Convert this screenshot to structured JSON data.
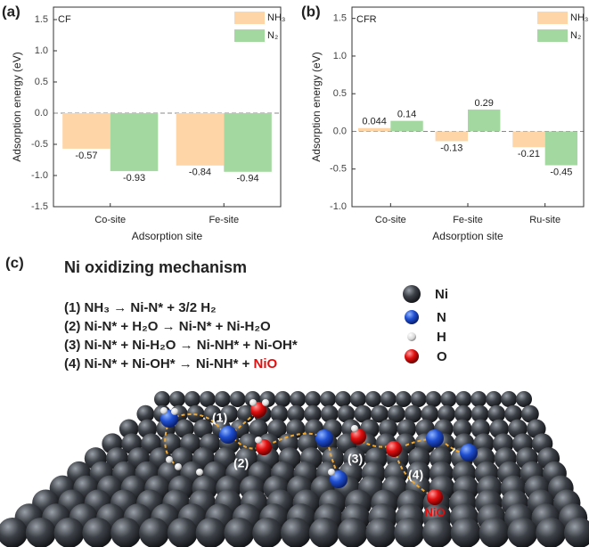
{
  "chart_data": [
    {
      "type": "bar",
      "panel_label": "(a)",
      "annotation": "CF",
      "ylabel": "Adsorption energy (eV)",
      "xlabel": "Adsorption site",
      "categories": [
        "Co-site",
        "Fe-site"
      ],
      "series": [
        {
          "name": "NH₃",
          "color": "#fdd5a6",
          "values": [
            -0.57,
            -0.84
          ]
        },
        {
          "name": "N₂",
          "color": "#a3d9a0",
          "values": [
            -0.93,
            -0.94
          ]
        }
      ],
      "ylim": [
        -1.5,
        1.7
      ],
      "yticks": [
        -1.5,
        {
          "value": -1.0,
          "label": "-1.0"
        },
        -0.5,
        {
          "value": 0,
          "label": "0.0"
        },
        0.5,
        {
          "value": 1.0,
          "label": "1.0"
        },
        1.5
      ],
      "legend": "upper right"
    },
    {
      "type": "bar",
      "panel_label": "(b)",
      "annotation": "CFR",
      "ylabel": "Adsorption energy (eV)",
      "xlabel": "Adsorption site",
      "categories": [
        "Co-site",
        "Fe-site",
        "Ru-site"
      ],
      "series": [
        {
          "name": "NH₃",
          "color": "#fdd5a6",
          "values": [
            0.044,
            -0.13,
            -0.21
          ]
        },
        {
          "name": "N₂",
          "color": "#a3d9a0",
          "values": [
            0.14,
            0.29,
            -0.45
          ]
        }
      ],
      "ylim": [
        -1.0,
        1.65
      ],
      "yticks": [
        {
          "value": -1.0,
          "label": "-1.0"
        },
        -0.5,
        {
          "value": 0,
          "label": "0.0"
        },
        0.5,
        {
          "value": 1.0,
          "label": "1.0"
        },
        1.5
      ],
      "legend": "upper right"
    }
  ],
  "mechanism": {
    "panel_label": "(c)",
    "title": "Ni oxidizing mechanism",
    "equations": [
      "(1) NH₃ → Ni-N* + 3/2 H₂",
      "(2) Ni-N* + H₂O → Ni-N* + Ni-H₂O",
      "(3) Ni-N* + Ni-H₂O → Ni-NH* + Ni-OH*",
      "(4) Ni-N* + Ni-OH* → Ni-NH* + "
    ],
    "product": "NiO",
    "legend": [
      "Ni",
      "N",
      "H",
      "O"
    ],
    "steps": [
      "(1)",
      "(2)",
      "(3)",
      "(4)"
    ],
    "surface_product": "NiO"
  }
}
